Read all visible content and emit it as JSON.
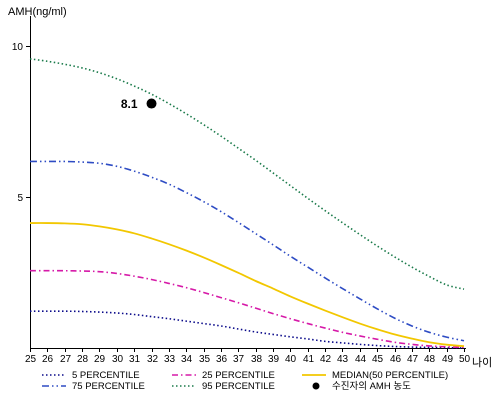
{
  "chart_data": {
    "type": "line",
    "title": "",
    "ylabel": "AMH(ng/ml)",
    "xlabel": "나이",
    "xlim": [
      25,
      50
    ],
    "ylim": [
      0,
      11
    ],
    "x": [
      25,
      26,
      27,
      28,
      29,
      30,
      31,
      32,
      33,
      34,
      35,
      36,
      37,
      38,
      39,
      40,
      41,
      42,
      43,
      44,
      45,
      46,
      47,
      48,
      49,
      50
    ],
    "x_tick_labels": [
      "25",
      "26",
      "27",
      "28",
      "29",
      "30",
      "31",
      "32",
      "33",
      "34",
      "35",
      "36",
      "37",
      "38",
      "39",
      "40",
      "41",
      "42",
      "43",
      "44",
      "45",
      "46",
      "47",
      "48",
      "49",
      "50"
    ],
    "y_ticks": [
      5,
      10
    ],
    "y_tick_labels": [
      "5",
      "10"
    ],
    "grid": false,
    "legend_position": "bottom",
    "series": [
      {
        "name": "5 PERCENTILE",
        "color": "#0a0a8a",
        "dash": "dotted",
        "values": [
          1.22,
          1.22,
          1.22,
          1.21,
          1.19,
          1.16,
          1.11,
          1.04,
          0.97,
          0.89,
          0.81,
          0.73,
          0.63,
          0.53,
          0.45,
          0.37,
          0.3,
          0.22,
          0.17,
          0.12,
          0.08,
          0.05,
          0.03,
          0.02,
          0.01,
          0.0
        ]
      },
      {
        "name": "25 PERCENTILE",
        "color": "#d61aa8",
        "dash": "dashdot",
        "values": [
          2.56,
          2.56,
          2.56,
          2.55,
          2.53,
          2.47,
          2.38,
          2.27,
          2.14,
          2.0,
          1.84,
          1.67,
          1.5,
          1.32,
          1.14,
          0.97,
          0.81,
          0.66,
          0.52,
          0.4,
          0.29,
          0.19,
          0.12,
          0.07,
          0.04,
          0.02
        ]
      },
      {
        "name": "MEDIAN(50 PERCENTILE)",
        "color": "#f2c700",
        "dash": "solid",
        "values": [
          4.14,
          4.14,
          4.13,
          4.1,
          4.03,
          3.93,
          3.8,
          3.63,
          3.44,
          3.23,
          3.0,
          2.75,
          2.49,
          2.22,
          1.97,
          1.71,
          1.47,
          1.24,
          1.02,
          0.81,
          0.62,
          0.45,
          0.31,
          0.19,
          0.11,
          0.06
        ]
      },
      {
        "name": "75 PERCENTILE",
        "color": "#2e4cc4",
        "dash": "dashdotdot",
        "values": [
          6.18,
          6.18,
          6.18,
          6.16,
          6.12,
          6.02,
          5.86,
          5.66,
          5.43,
          5.15,
          4.85,
          4.52,
          4.16,
          3.79,
          3.42,
          3.04,
          2.68,
          2.32,
          1.97,
          1.63,
          1.3,
          0.99,
          0.73,
          0.52,
          0.36,
          0.24
        ]
      },
      {
        "name": "95 PERCENTILE",
        "color": "#1a7a4a",
        "dash": "dotted",
        "values": [
          9.58,
          9.5,
          9.4,
          9.28,
          9.12,
          8.92,
          8.68,
          8.41,
          8.1,
          7.76,
          7.4,
          7.02,
          6.62,
          6.22,
          5.8,
          5.38,
          4.96,
          4.55,
          4.15,
          3.76,
          3.38,
          3.02,
          2.68,
          2.37,
          2.09,
          1.95
        ]
      }
    ],
    "annotations": [
      {
        "label": "8.1",
        "x": 32,
        "y": 8.1,
        "marker": "circle",
        "color": "#000000"
      }
    ],
    "marker_legend": {
      "label": "수진자의 AMH 농도",
      "icon": "black-circle"
    }
  }
}
